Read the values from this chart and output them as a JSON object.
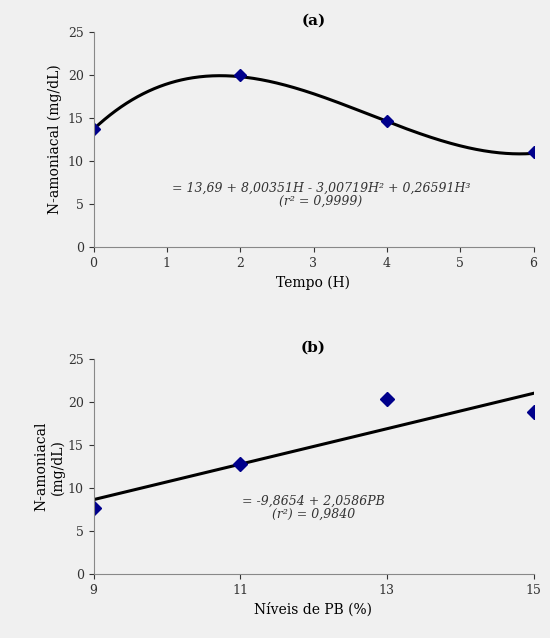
{
  "panel_a": {
    "title": "(a)",
    "x_data": [
      0,
      2,
      4,
      6
    ],
    "y_data": [
      13.69,
      19.97,
      14.69,
      11.1
    ],
    "xlabel": "Tempo (H)",
    "ylabel": "N-amoniacal (mg/dL)",
    "xlim": [
      0,
      6
    ],
    "ylim": [
      0,
      25
    ],
    "xticks": [
      0,
      1,
      2,
      3,
      4,
      5,
      6
    ],
    "yticks": [
      0,
      5,
      10,
      15,
      20,
      25
    ],
    "equation": "= 13,69 + 8,00351H - 3,00719H² + 0,26591H³",
    "r2_text": "(r² = 0,9999)",
    "eq_x": 3.1,
    "eq_y": 6.8,
    "poly_coeffs": [
      0.26591,
      -3.00719,
      8.00351,
      13.69
    ],
    "marker_color": "#00008B",
    "line_color": "#000000"
  },
  "panel_b": {
    "title": "(b)",
    "x_data": [
      9,
      11,
      13,
      15
    ],
    "y_data": [
      7.67,
      12.8,
      20.3,
      18.82
    ],
    "xlabel": "Níveis de PB (%)",
    "ylabel": "N-amoniacal\n(mg/dL)",
    "xlim": [
      9,
      15
    ],
    "ylim": [
      0,
      25
    ],
    "xticks": [
      9,
      11,
      13,
      15
    ],
    "yticks": [
      0,
      5,
      10,
      15,
      20,
      25
    ],
    "equation": "= -9,8654 + 2,0586PB",
    "r2_text": "(r²) = 0,9840",
    "eq_x": 12.0,
    "eq_y": 8.5,
    "slope": 2.0586,
    "intercept": -9.8654,
    "marker_color": "#00008B",
    "line_color": "#000000"
  },
  "bg_color": "#f0f0f0",
  "font_family": "serif"
}
